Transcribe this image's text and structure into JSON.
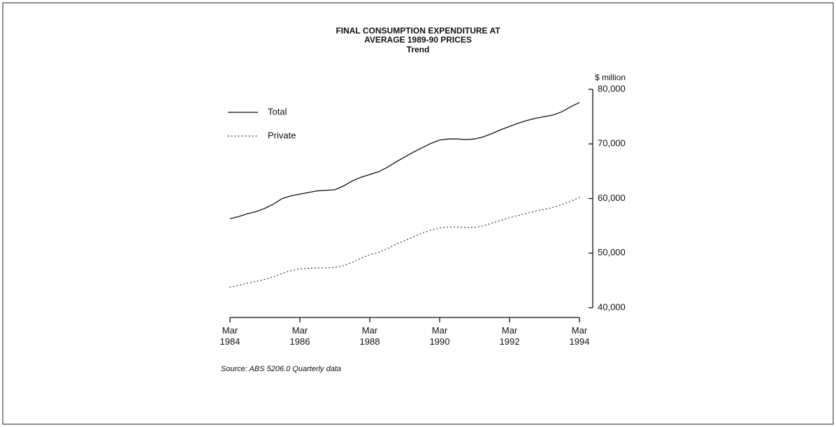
{
  "chart_data": {
    "type": "line",
    "title": "FINAL CONSUMPTION EXPENDITURE AT AVERAGE 1989-90 PRICES",
    "subtitle": "Trend",
    "y_label": "$ million",
    "note": "Source: ABS 5206.0 Quarterly data",
    "categories": [
      "Mar 1984",
      null,
      null,
      null,
      null,
      null,
      null,
      null,
      "Mar 1986",
      null,
      null,
      null,
      null,
      null,
      null,
      null,
      "Mar 1988",
      null,
      null,
      null,
      null,
      null,
      null,
      null,
      "Mar 1990",
      null,
      null,
      null,
      null,
      null,
      null,
      null,
      "Mar 1992",
      null,
      null,
      null,
      null,
      null,
      null,
      null,
      "Mar 1994"
    ],
    "series": [
      {
        "name": "Total",
        "color": "#111111",
        "style": "solid",
        "values": [
          56300,
          56700,
          57200,
          57600,
          58200,
          59000,
          60000,
          60500,
          60800,
          61100,
          61400,
          61500,
          61600,
          62300,
          63200,
          63900,
          64400,
          64900,
          65700,
          66700,
          67600,
          68500,
          69300,
          70100,
          70700,
          70900,
          70900,
          70800,
          70900,
          71300,
          71900,
          72600,
          73200,
          73800,
          74300,
          74700,
          75000,
          75300,
          75900,
          76800,
          77600
        ]
      },
      {
        "name": "Private",
        "color": "#333333",
        "style": "dotted",
        "values": [
          43800,
          44100,
          44500,
          44800,
          45200,
          45700,
          46300,
          46800,
          47100,
          47200,
          47300,
          47300,
          47400,
          47700,
          48300,
          49100,
          49700,
          50100,
          50800,
          51600,
          52300,
          53000,
          53700,
          54200,
          54600,
          54800,
          54800,
          54700,
          54700,
          55000,
          55500,
          56000,
          56500,
          56900,
          57300,
          57700,
          58000,
          58400,
          58900,
          59500,
          60200
        ]
      }
    ],
    "ylim": [
      40000,
      80000
    ],
    "yticks": [
      {
        "value": 40000,
        "label": "40,000"
      },
      {
        "value": 50000,
        "label": "50,000"
      },
      {
        "value": 60000,
        "label": "60,000"
      },
      {
        "value": 70000,
        "label": "70,000"
      },
      {
        "value": 80000,
        "label": "80,000"
      }
    ],
    "y_axis_side": "right",
    "grid": false,
    "legend": "upper left"
  }
}
